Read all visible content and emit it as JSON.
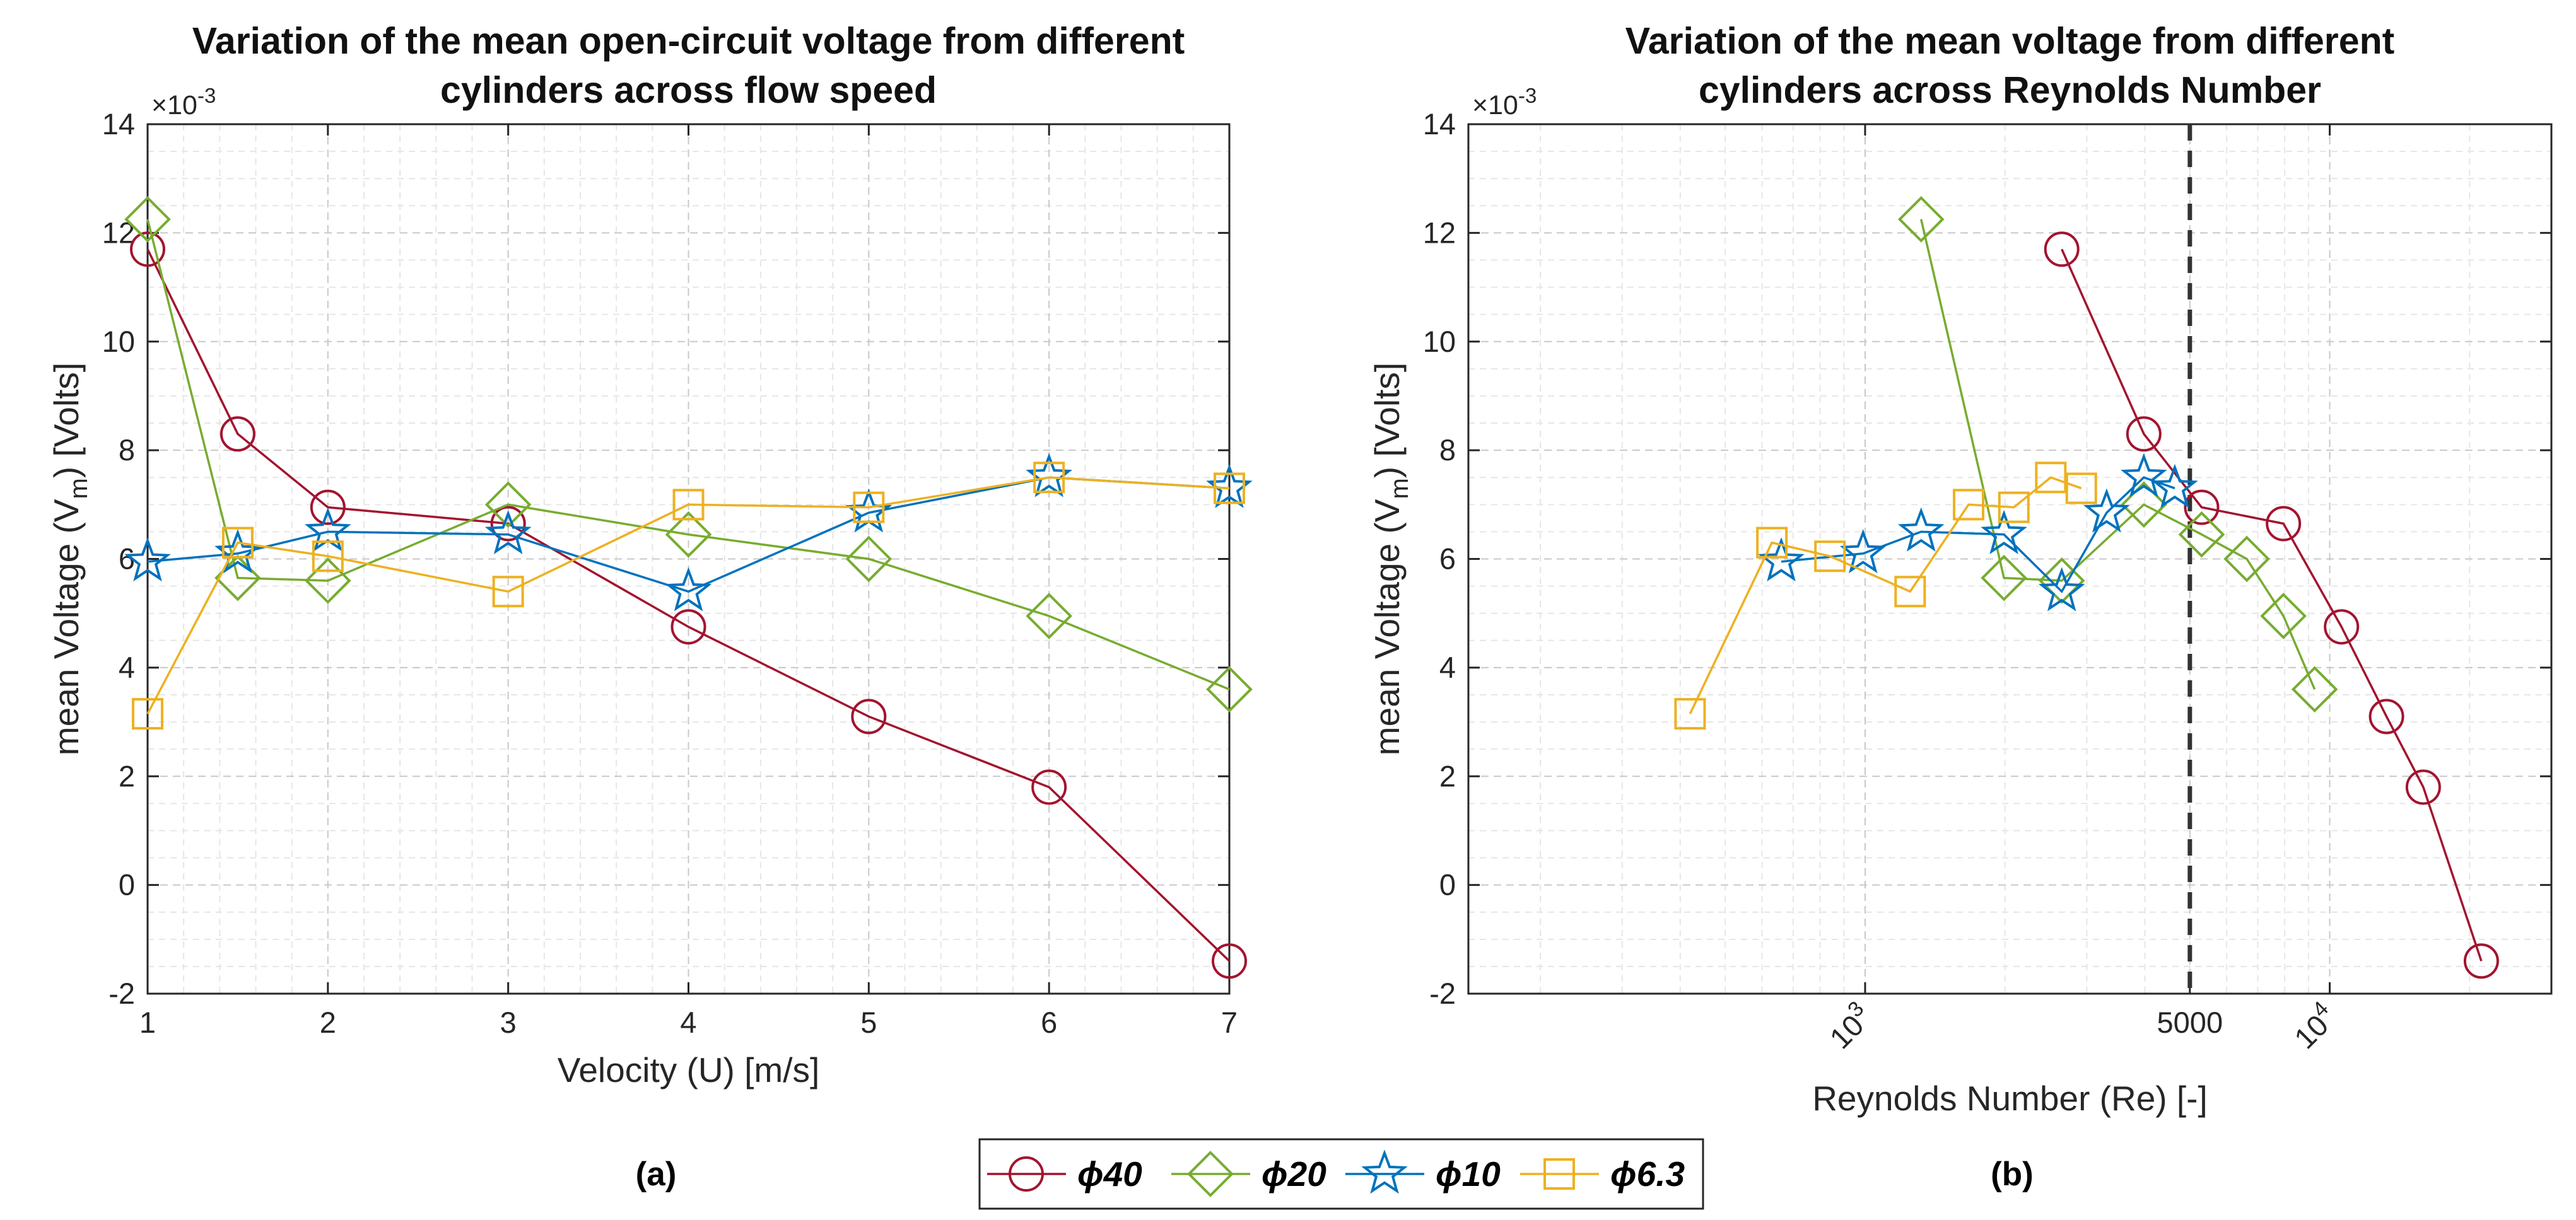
{
  "legend": {
    "entries": [
      {
        "key": "d40",
        "label": "ϕ40",
        "color": "#A2142F",
        "marker": "circle-marker-icon"
      },
      {
        "key": "d20",
        "label": "ϕ20",
        "color": "#77AC30",
        "marker": "diamond-marker-icon"
      },
      {
        "key": "d10",
        "label": "ϕ10",
        "color": "#0072BD",
        "marker": "pentagram-marker-icon"
      },
      {
        "key": "d63",
        "label": "ϕ6.3",
        "color": "#EDB120",
        "marker": "square-marker-icon"
      }
    ]
  },
  "chart_data": [
    {
      "id": "a",
      "type": "line",
      "sublabel": "(a)",
      "title_lines": [
        "Variation of the mean open-circuit voltage from different",
        "cylinders across flow speed"
      ],
      "xlabel": "Velocity (U) [m/s]",
      "ylabel_parts": [
        "mean Voltage (V",
        "m",
        ") [Volts]"
      ],
      "xscale": "linear",
      "xlim": [
        1,
        7
      ],
      "ylim": [
        -2,
        14
      ],
      "y_multiplier": {
        "base": "×10",
        "exp": "-3"
      },
      "xticks": [
        {
          "v": 1,
          "label": "1"
        },
        {
          "v": 2,
          "label": "2"
        },
        {
          "v": 3,
          "label": "3"
        },
        {
          "v": 4,
          "label": "4"
        },
        {
          "v": 5,
          "label": "5"
        },
        {
          "v": 6,
          "label": "6"
        },
        {
          "v": 7,
          "label": "7"
        }
      ],
      "yticks": [
        {
          "v": -2,
          "label": "-2"
        },
        {
          "v": 0,
          "label": "0"
        },
        {
          "v": 2,
          "label": "2"
        },
        {
          "v": 4,
          "label": "4"
        },
        {
          "v": 6,
          "label": "6"
        },
        {
          "v": 8,
          "label": "8"
        },
        {
          "v": 10,
          "label": "10"
        },
        {
          "v": 12,
          "label": "12"
        },
        {
          "v": 14,
          "label": "14"
        }
      ],
      "grid": true,
      "series": [
        {
          "key": "d40",
          "name": "ϕ40",
          "x": [
            1,
            1.5,
            2,
            3,
            4,
            5,
            6,
            7
          ],
          "y": [
            11.7,
            8.3,
            6.95,
            6.65,
            4.75,
            3.1,
            1.8,
            -1.4
          ]
        },
        {
          "key": "d20",
          "name": "ϕ20",
          "x": [
            1,
            1.5,
            2,
            3,
            4,
            5,
            6,
            7
          ],
          "y": [
            12.25,
            5.65,
            5.6,
            7.0,
            6.45,
            6.0,
            4.95,
            3.6
          ]
        },
        {
          "key": "d10",
          "name": "ϕ10",
          "x": [
            1,
            1.5,
            2,
            3,
            4,
            5,
            6,
            7
          ],
          "y": [
            5.95,
            6.1,
            6.5,
            6.45,
            5.4,
            6.85,
            7.5,
            7.3
          ]
        },
        {
          "key": "d63",
          "name": "ϕ6.3",
          "x": [
            1,
            1.5,
            2,
            3,
            4,
            5,
            6,
            7
          ],
          "y": [
            3.15,
            6.3,
            6.05,
            5.4,
            7.0,
            6.95,
            7.5,
            7.3
          ]
        }
      ]
    },
    {
      "id": "b",
      "type": "line",
      "sublabel": "(b)",
      "title_lines": [
        "Variation of the mean voltage from different",
        "cylinders across Reynolds Number"
      ],
      "xlabel": "Reynolds Number (Re) [-]",
      "ylabel_parts": [
        "mean Voltage (V",
        "m",
        ") [Volts]"
      ],
      "xscale": "log",
      "xlim": [
        140,
        30000
      ],
      "ylim": [
        -2,
        14
      ],
      "y_multiplier": {
        "base": "×10",
        "exp": "-3"
      },
      "xticks": [
        {
          "v": 1000,
          "label": "10",
          "sup": "3",
          "rotated": true
        },
        {
          "v": 5000,
          "label": "5000",
          "rotated": false
        },
        {
          "v": 10000,
          "label": "10",
          "sup": "4",
          "rotated": true
        }
      ],
      "yticks": [
        {
          "v": -2,
          "label": "-2"
        },
        {
          "v": 0,
          "label": "0"
        },
        {
          "v": 2,
          "label": "2"
        },
        {
          "v": 4,
          "label": "4"
        },
        {
          "v": 6,
          "label": "6"
        },
        {
          "v": 8,
          "label": "8"
        },
        {
          "v": 10,
          "label": "10"
        },
        {
          "v": 12,
          "label": "12"
        },
        {
          "v": 14,
          "label": "14"
        }
      ],
      "grid": true,
      "vline": {
        "x": 5000,
        "style": "dashed"
      },
      "series": [
        {
          "key": "d40",
          "name": "ϕ40",
          "x": [
            2650,
            3980,
            5300,
            7950,
            10600,
            13250,
            15900,
            21200
          ],
          "y": [
            11.7,
            8.3,
            6.95,
            6.65,
            4.75,
            3.1,
            1.8,
            -1.4
          ]
        },
        {
          "key": "d20",
          "name": "ϕ20",
          "x": [
            1320,
            1990,
            2650,
            3980,
            5300,
            6630,
            7950,
            9280
          ],
          "y": [
            12.25,
            5.65,
            5.6,
            7.0,
            6.45,
            6.0,
            4.95,
            3.6
          ]
        },
        {
          "key": "d10",
          "name": "ϕ10",
          "x": [
            660,
            990,
            1320,
            1990,
            2650,
            3310,
            3980,
            4640
          ],
          "y": [
            5.95,
            6.1,
            6.5,
            6.45,
            5.4,
            6.85,
            7.5,
            7.3
          ]
        },
        {
          "key": "d63",
          "name": "ϕ6.3",
          "x": [
            420,
            630,
            840,
            1250,
            1670,
            2090,
            2510,
            2920
          ],
          "y": [
            3.15,
            6.3,
            6.05,
            5.4,
            7.0,
            6.95,
            7.5,
            7.3
          ]
        }
      ]
    }
  ]
}
